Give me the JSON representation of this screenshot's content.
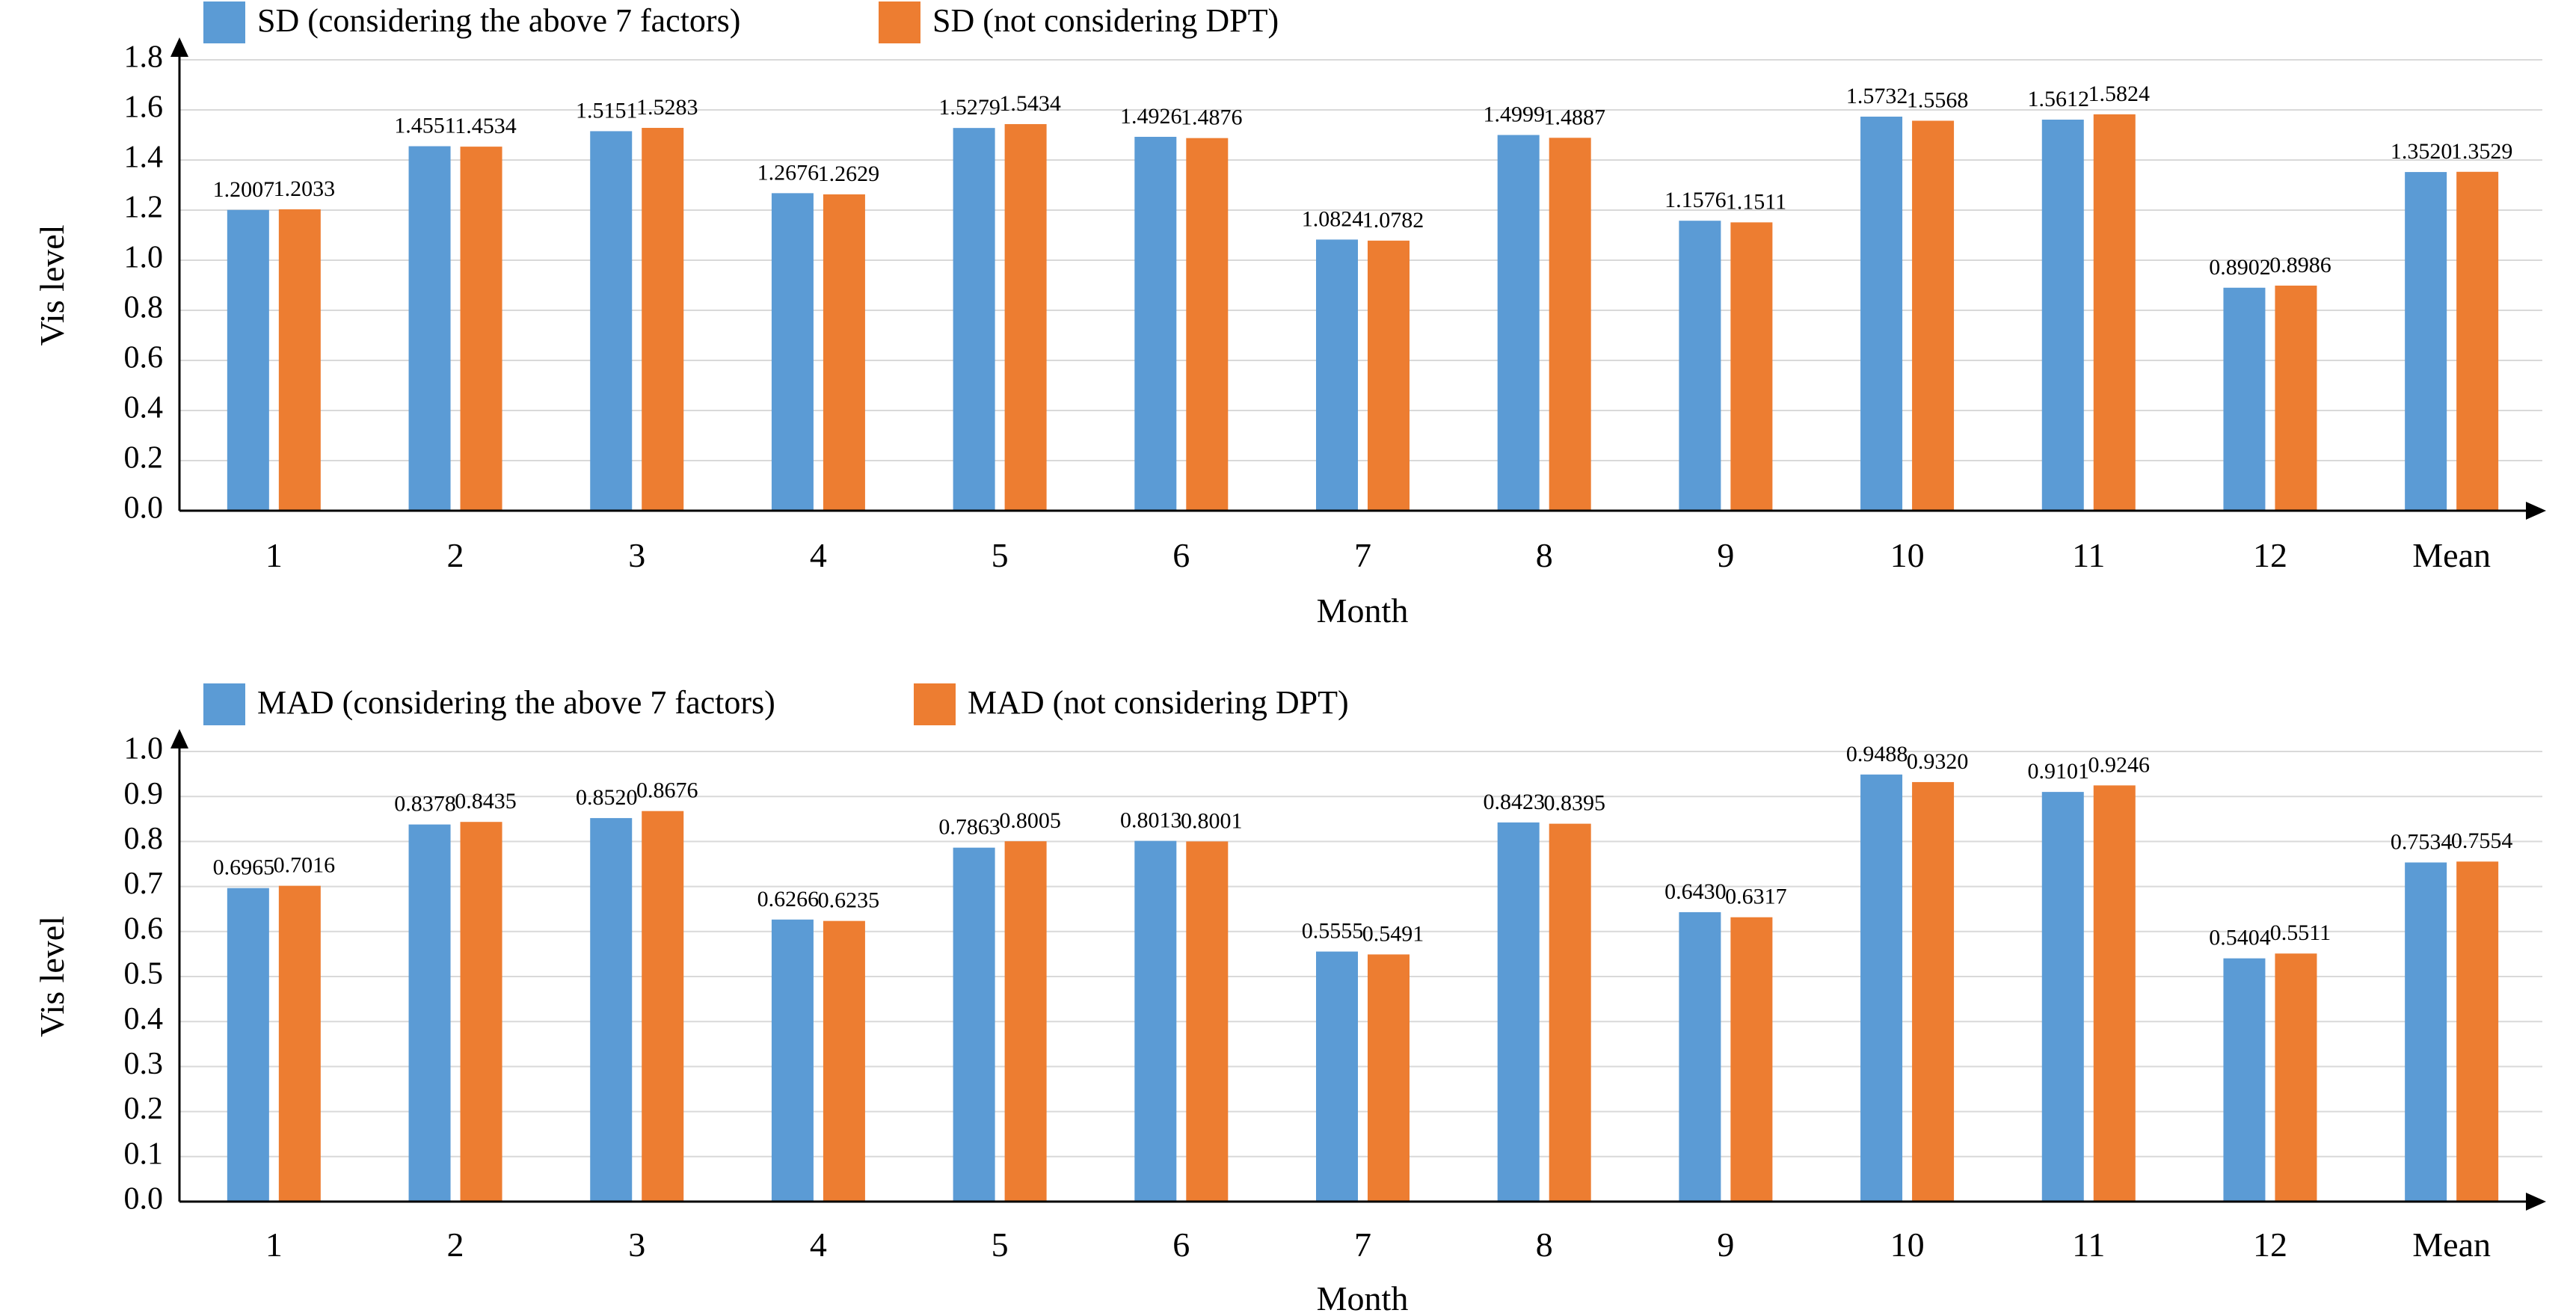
{
  "colors": {
    "series_a": "#5b9bd5",
    "series_b": "#ed7d31",
    "grid": "#d9d9d9",
    "axis": "#000000"
  },
  "chart_data": [
    {
      "type": "bar",
      "legend_position": "top-left",
      "grid": true,
      "xlabel": "Month",
      "ylabel": "Vis level",
      "ylim": [
        0,
        1.8
      ],
      "ytick_step": 0.2,
      "categories": [
        "1",
        "2",
        "3",
        "4",
        "5",
        "6",
        "7",
        "8",
        "9",
        "10",
        "11",
        "12",
        "Mean"
      ],
      "series": [
        {
          "name": "SD (considering the above 7 factors)",
          "values": [
            1.2007,
            1.4551,
            1.5151,
            1.2676,
            1.5279,
            1.4926,
            1.0824,
            1.4999,
            1.1576,
            1.5732,
            1.5612,
            0.8902,
            1.352
          ],
          "labels": [
            "1.2007",
            "1.4551",
            "1.5151",
            "1.2676",
            "1.5279",
            "1.4926",
            "1.0824",
            "1.4999",
            "1.1576",
            "1.5732",
            "1.5612",
            "0.8902",
            "1.3520"
          ]
        },
        {
          "name": "SD (not considering DPT)",
          "values": [
            1.2033,
            1.4534,
            1.5283,
            1.2629,
            1.5434,
            1.4876,
            1.0782,
            1.4887,
            1.1511,
            1.5568,
            1.5824,
            0.8986,
            1.3529
          ],
          "labels": [
            "1.2033",
            "1.4534",
            "1.5283",
            "1.2629",
            "1.5434",
            "1.4876",
            "1.0782",
            "1.4887",
            "1.1511",
            "1.5568",
            "1.5824",
            "0.8986",
            "1.3529"
          ]
        }
      ]
    },
    {
      "type": "bar",
      "legend_position": "top-left",
      "grid": true,
      "xlabel": "Month",
      "ylabel": "Vis level",
      "ylim": [
        0,
        1.0
      ],
      "ytick_step": 0.1,
      "categories": [
        "1",
        "2",
        "3",
        "4",
        "5",
        "6",
        "7",
        "8",
        "9",
        "10",
        "11",
        "12",
        "Mean"
      ],
      "series": [
        {
          "name": "MAD (considering the above 7 factors)",
          "values": [
            0.6965,
            0.8378,
            0.852,
            0.6266,
            0.7863,
            0.8013,
            0.5555,
            0.8423,
            0.643,
            0.9488,
            0.9101,
            0.5404,
            0.7534
          ],
          "labels": [
            "0.6965",
            "0.8378",
            "0.8520",
            "0.6266",
            "0.7863",
            "0.8013",
            "0.5555",
            "0.8423",
            "0.6430",
            "0.9488",
            "0.9101",
            "0.5404",
            "0.7534"
          ]
        },
        {
          "name": "MAD (not considering DPT)",
          "values": [
            0.7016,
            0.8435,
            0.8676,
            0.6235,
            0.8005,
            0.8001,
            0.5491,
            0.8395,
            0.6317,
            0.932,
            0.9246,
            0.5511,
            0.7554
          ],
          "labels": [
            "0.7016",
            "0.8435",
            "0.8676",
            "0.6235",
            "0.8005",
            "0.8001",
            "0.5491",
            "0.8395",
            "0.6317",
            "0.9320",
            "0.9246",
            "0.5511",
            "0.7554"
          ]
        }
      ]
    }
  ]
}
